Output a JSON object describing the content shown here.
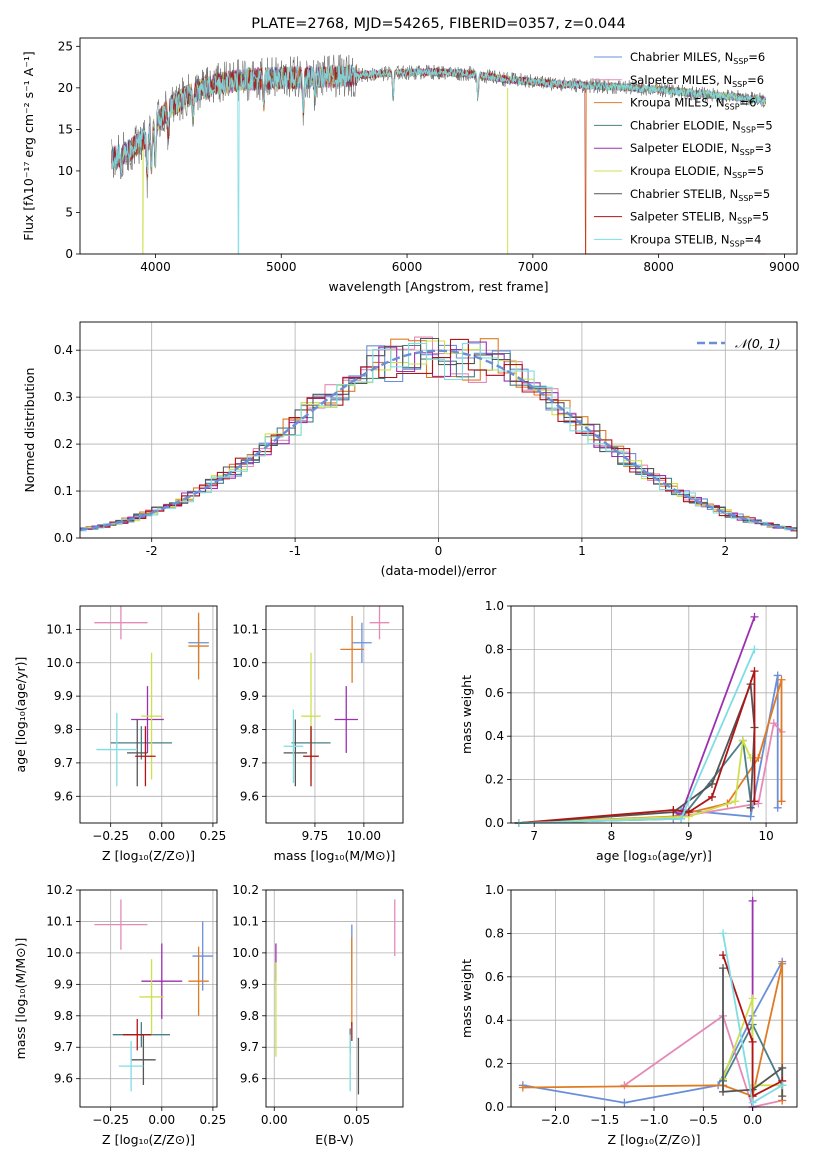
{
  "figure_title": "PLATE=2768, MJD=54265, FIBERID=0357, z=0.044",
  "colors": {
    "grid": "#b0b0b0",
    "chabrier_miles": "#6a8fd9",
    "salpeter_miles": "#e58ab8",
    "kroupa_miles": "#e07b25",
    "chabrier_elodie": "#4a7f8a",
    "salpeter_elodie": "#9b30b0",
    "kroupa_elodie": "#cfe04e",
    "chabrier_stelib": "#555555",
    "salpeter_stelib": "#b01515",
    "kroupa_stelib": "#7fdde3",
    "normal_curve": "#6a8fd9"
  },
  "chart_data": [
    {
      "id": "spectrum",
      "type": "line",
      "title": "PLATE=2768, MJD=54265, FIBERID=0357, z=0.044",
      "xlabel": "wavelength [Angstrom, rest frame]",
      "ylabel": "Flux [fλ10⁻¹⁷ erg cm⁻² s⁻¹ A⁻¹]",
      "xlim": [
        3400,
        9100
      ],
      "ylim": [
        0,
        26
      ],
      "xticks": [
        4000,
        5000,
        6000,
        7000,
        8000,
        9000
      ],
      "yticks": [
        0,
        5,
        10,
        15,
        20,
        25
      ],
      "legend_position": "top-right",
      "grid": false,
      "continuum": {
        "x": [
          3650,
          3800,
          3950,
          4100,
          4300,
          4500,
          4700,
          5000,
          5300,
          5600,
          5900,
          6200,
          6500,
          6800,
          7100,
          7400,
          7700,
          8000,
          8300,
          8600,
          8850
        ],
        "y": [
          11.5,
          12.5,
          14.5,
          17.5,
          19.5,
          20.5,
          21.0,
          21.2,
          21.3,
          21.5,
          21.8,
          21.9,
          21.7,
          21.0,
          20.6,
          20.3,
          20.1,
          19.8,
          19.3,
          18.9,
          18.5
        ]
      },
      "series": [
        {
          "name": "Chabrier MILES, N_SSP=6",
          "legend_base": "Chabrier MILES, N",
          "legend_sub": "SSP",
          "legend_tail": "=6",
          "color_key": "chabrier_miles",
          "lw": 0.7
        },
        {
          "name": "Salpeter MILES, N_SSP=6",
          "legend_base": "Salpeter MILES, N",
          "legend_sub": "SSP",
          "legend_tail": "=6",
          "color_key": "salpeter_miles",
          "lw": 0.7
        },
        {
          "name": "Kroupa MILES, N_SSP=6",
          "legend_base": "Kroupa MILES, N",
          "legend_sub": "SSP",
          "legend_tail": "=6",
          "color_key": "kroupa_miles",
          "lw": 0.7,
          "drop_at": 7420
        },
        {
          "name": "Chabrier ELODIE, N_SSP=5",
          "legend_base": "Chabrier ELODIE, N",
          "legend_sub": "SSP",
          "legend_tail": "=5",
          "color_key": "chabrier_elodie",
          "lw": 0.7
        },
        {
          "name": "Salpeter ELODIE, N_SSP=3",
          "legend_base": "Salpeter ELODIE, N",
          "legend_sub": "SSP",
          "legend_tail": "=3",
          "color_key": "salpeter_elodie",
          "lw": 0.7
        },
        {
          "name": "Kroupa ELODIE, N_SSP=5",
          "legend_base": "Kroupa ELODIE, N",
          "legend_sub": "SSP",
          "legend_tail": "=5",
          "color_key": "kroupa_elodie",
          "lw": 0.7,
          "drop_at": 3900
        },
        {
          "name": "Chabrier STELIB, N_SSP=5",
          "legend_base": "Chabrier STELIB, N",
          "legend_sub": "SSP",
          "legend_tail": "=5",
          "color_key": "chabrier_stelib",
          "lw": 0.5
        },
        {
          "name": "Salpeter STELIB, N_SSP=5",
          "legend_base": "Salpeter STELIB, N",
          "legend_sub": "SSP",
          "legend_tail": "=5",
          "color_key": "salpeter_stelib",
          "lw": 0.7,
          "drop_at": 7420
        },
        {
          "name": "Kroupa STELIB, N_SSP=4",
          "legend_base": "Kroupa STELIB, N",
          "legend_sub": "SSP",
          "legend_tail": "=4",
          "color_key": "kroupa_stelib",
          "lw": 0.9,
          "drop_at": 4660
        }
      ],
      "data_dropout": {
        "x": 6800,
        "y_from": 20,
        "y_to": 0
      }
    },
    {
      "id": "residuals",
      "type": "histogram",
      "xlabel": "(data-model)/error",
      "ylabel": "Normed distribution",
      "xlim": [
        -2.5,
        2.5
      ],
      "ylim": [
        0,
        0.46
      ],
      "xticks": [
        -2,
        -1,
        0,
        1,
        2
      ],
      "yticks": [
        0.0,
        0.1,
        0.2,
        0.3,
        0.4
      ],
      "grid": true,
      "legend": [
        {
          "label": "𝒩(0, 1)",
          "style": "dashed",
          "color_key": "normal_curve"
        }
      ],
      "normal_curve": {
        "mu": 0,
        "sigma": 1
      },
      "bin_width": 0.125,
      "bins_x_range": [
        -2.5,
        2.5
      ],
      "series_keys": [
        "chabrier_miles",
        "salpeter_miles",
        "kroupa_miles",
        "chabrier_elodie",
        "salpeter_elodie",
        "kroupa_elodie",
        "chabrier_stelib",
        "salpeter_stelib",
        "kroupa_stelib"
      ]
    },
    {
      "id": "age-vs-Z",
      "type": "scatter",
      "xlabel": "Z [log₁₀(Z/Z⊙)]",
      "ylabel": "age  [log₁₀(age/yr)]",
      "xlim": [
        -0.4,
        0.27
      ],
      "ylim": [
        9.52,
        10.17
      ],
      "xticks": [
        -0.25,
        0.0,
        0.25
      ],
      "xtick_labels": [
        "−0.25",
        "0.00",
        "0.25"
      ],
      "yticks": [
        9.6,
        9.7,
        9.8,
        9.9,
        10.0,
        10.1
      ],
      "grid": true,
      "points": [
        {
          "color_key": "salpeter_miles",
          "x": -0.2,
          "xerr": 0.13,
          "y": 10.12,
          "yerr": 0.05
        },
        {
          "color_key": "chabrier_miles",
          "x": 0.18,
          "xerr": 0.05,
          "y": 10.06,
          "yerr": 0.06
        },
        {
          "color_key": "kroupa_miles",
          "x": 0.18,
          "xerr": 0.05,
          "y": 10.05,
          "yerr": 0.1
        },
        {
          "color_key": "chabrier_elodie",
          "x": -0.1,
          "xerr": 0.15,
          "y": 9.76,
          "yerr": 0.05
        },
        {
          "color_key": "salpeter_elodie",
          "x": -0.07,
          "xerr": 0.08,
          "y": 9.83,
          "yerr": 0.1
        },
        {
          "color_key": "kroupa_elodie",
          "x": -0.05,
          "xerr": 0.05,
          "y": 9.84,
          "yerr": 0.19
        },
        {
          "color_key": "chabrier_stelib",
          "x": -0.12,
          "xerr": 0.05,
          "y": 9.73,
          "yerr": 0.1
        },
        {
          "color_key": "salpeter_stelib",
          "x": -0.08,
          "xerr": 0.05,
          "y": 9.72,
          "yerr": 0.09
        },
        {
          "color_key": "kroupa_stelib",
          "x": -0.22,
          "xerr": 0.1,
          "y": 9.74,
          "yerr": 0.11
        }
      ]
    },
    {
      "id": "age-vs-mass",
      "type": "scatter",
      "xlabel": "mass [log₁₀(M/M⊙)]",
      "ylabel": "",
      "xlim": [
        9.5,
        10.2
      ],
      "ylim": [
        9.52,
        10.17
      ],
      "xticks": [
        9.75,
        10.0
      ],
      "xtick_labels": [
        "9.75",
        "10.00"
      ],
      "yticks": [
        9.6,
        9.7,
        9.8,
        9.9,
        10.0,
        10.1
      ],
      "grid": true,
      "points": [
        {
          "color_key": "salpeter_miles",
          "x": 10.08,
          "xerr": 0.05,
          "y": 10.12,
          "yerr": 0.05
        },
        {
          "color_key": "chabrier_miles",
          "x": 9.99,
          "xerr": 0.05,
          "y": 10.06,
          "yerr": 0.06
        },
        {
          "color_key": "kroupa_miles",
          "x": 9.94,
          "xerr": 0.06,
          "y": 10.04,
          "yerr": 0.1
        },
        {
          "color_key": "chabrier_elodie",
          "x": 9.73,
          "xerr": 0.1,
          "y": 9.76,
          "yerr": 0.05
        },
        {
          "color_key": "salpeter_elodie",
          "x": 9.91,
          "xerr": 0.06,
          "y": 9.83,
          "yerr": 0.1
        },
        {
          "color_key": "kroupa_elodie",
          "x": 9.73,
          "xerr": 0.05,
          "y": 9.84,
          "yerr": 0.19
        },
        {
          "color_key": "chabrier_stelib",
          "x": 9.65,
          "xerr": 0.06,
          "y": 9.73,
          "yerr": 0.1
        },
        {
          "color_key": "salpeter_stelib",
          "x": 9.73,
          "xerr": 0.04,
          "y": 9.72,
          "yerr": 0.09
        },
        {
          "color_key": "kroupa_stelib",
          "x": 9.64,
          "xerr": 0.05,
          "y": 9.75,
          "yerr": 0.11
        }
      ]
    },
    {
      "id": "mass-weight-vs-age",
      "type": "line",
      "xlabel": "age  [log₁₀(age/yr)]",
      "ylabel": "mass weight",
      "xlim": [
        6.7,
        10.4
      ],
      "ylim": [
        0,
        1.0
      ],
      "xticks": [
        7,
        8,
        9,
        10
      ],
      "yticks": [
        0.0,
        0.2,
        0.4,
        0.6,
        0.8,
        1.0
      ],
      "grid": true,
      "series": [
        {
          "color_key": "chabrier_miles",
          "x": [
            6.8,
            8.8,
            8.9,
            9.8,
            10.15,
            10.15
          ],
          "y": [
            0.0,
            0.02,
            0.06,
            0.03,
            0.68,
            0.07
          ]
        },
        {
          "color_key": "salpeter_miles",
          "x": [
            6.8,
            8.9,
            9.9,
            10.1,
            10.2
          ],
          "y": [
            0.0,
            0.03,
            0.09,
            0.46,
            0.42
          ]
        },
        {
          "color_key": "kroupa_miles",
          "x": [
            6.8,
            8.8,
            9.5,
            9.9,
            10.2,
            10.2
          ],
          "y": [
            0.0,
            0.03,
            0.09,
            0.3,
            0.66,
            0.1
          ]
        },
        {
          "color_key": "chabrier_elodie",
          "x": [
            6.8,
            8.9,
            9.7,
            9.8
          ],
          "y": [
            0.0,
            0.02,
            0.38,
            0.1
          ]
        },
        {
          "color_key": "salpeter_elodie",
          "x": [
            8.8,
            8.9,
            9.85
          ],
          "y": [
            0.05,
            0.04,
            0.95
          ]
        },
        {
          "color_key": "kroupa_elodie",
          "x": [
            6.8,
            9.0,
            9.6,
            9.7,
            9.8
          ],
          "y": [
            0.0,
            0.03,
            0.1,
            0.38,
            0.3
          ]
        },
        {
          "color_key": "chabrier_stelib",
          "x": [
            6.8,
            8.8,
            9.3,
            9.8,
            9.85,
            9.8
          ],
          "y": [
            0.0,
            0.05,
            0.18,
            0.64,
            0.44,
            0.07
          ]
        },
        {
          "color_key": "salpeter_stelib",
          "x": [
            6.8,
            8.8,
            9.0,
            9.3,
            9.85,
            9.85
          ],
          "y": [
            0.0,
            0.06,
            0.05,
            0.12,
            0.7,
            0.1
          ]
        },
        {
          "color_key": "kroupa_stelib",
          "x": [
            6.8,
            8.9,
            9.85
          ],
          "y": [
            0.0,
            0.02,
            0.8
          ]
        }
      ]
    },
    {
      "id": "mass-vs-Z",
      "type": "scatter",
      "xlabel": "Z [log₁₀(Z/Z⊙)]",
      "ylabel": "mass [log₁₀(M/M⊙)]",
      "xlim": [
        -0.4,
        0.27
      ],
      "ylim": [
        9.51,
        10.2
      ],
      "xticks": [
        -0.25,
        0.0,
        0.25
      ],
      "xtick_labels": [
        "−0.25",
        "0.00",
        "0.25"
      ],
      "yticks": [
        9.6,
        9.7,
        9.8,
        9.9,
        10.0,
        10.1,
        10.2
      ],
      "grid": true,
      "points": [
        {
          "color_key": "salpeter_miles",
          "x": -0.2,
          "xerr": 0.13,
          "y": 10.09,
          "yerr": 0.08
        },
        {
          "color_key": "chabrier_miles",
          "x": 0.2,
          "xerr": 0.05,
          "y": 9.99,
          "yerr": 0.11
        },
        {
          "color_key": "kroupa_miles",
          "x": 0.18,
          "xerr": 0.05,
          "y": 9.91,
          "yerr": 0.11
        },
        {
          "color_key": "chabrier_elodie",
          "x": -0.1,
          "xerr": 0.14,
          "y": 9.74,
          "yerr": 0.04
        },
        {
          "color_key": "salpeter_elodie",
          "x": 0.0,
          "xerr": 0.1,
          "y": 9.91,
          "yerr": 0.12
        },
        {
          "color_key": "kroupa_elodie",
          "x": -0.05,
          "xerr": 0.06,
          "y": 9.86,
          "yerr": 0.12
        },
        {
          "color_key": "chabrier_stelib",
          "x": -0.09,
          "xerr": 0.06,
          "y": 9.66,
          "yerr": 0.08
        },
        {
          "color_key": "salpeter_stelib",
          "x": -0.12,
          "xerr": 0.07,
          "y": 9.74,
          "yerr": 0.05
        },
        {
          "color_key": "kroupa_stelib",
          "x": -0.15,
          "xerr": 0.06,
          "y": 9.64,
          "yerr": 0.08
        }
      ]
    },
    {
      "id": "mass-vs-ebv",
      "type": "scatter",
      "xlabel": "E(B-V)",
      "ylabel": "",
      "xlim": [
        -0.005,
        0.078
      ],
      "ylim": [
        9.51,
        10.2
      ],
      "xticks": [
        0.0,
        0.05
      ],
      "xtick_labels": [
        "0.00",
        "0.05"
      ],
      "yticks": [
        9.6,
        9.7,
        9.8,
        9.9,
        10.0,
        10.1,
        10.2
      ],
      "grid": true,
      "points": [
        {
          "color_key": "salpeter_miles",
          "x": 0.073,
          "xerr": 0,
          "y": 10.08,
          "yerr": 0.09
        },
        {
          "color_key": "chabrier_miles",
          "x": 0.047,
          "xerr": 0,
          "y": 10.0,
          "yerr": 0.09
        },
        {
          "color_key": "kroupa_miles",
          "x": 0.047,
          "xerr": 0,
          "y": 9.91,
          "yerr": 0.14
        },
        {
          "color_key": "chabrier_elodie",
          "x": 0.046,
          "xerr": 0,
          "y": 9.72,
          "yerr": 0.04
        },
        {
          "color_key": "salpeter_elodie",
          "x": 0.001,
          "xerr": 0,
          "y": 9.97,
          "yerr": 0.06
        },
        {
          "color_key": "kroupa_elodie",
          "x": 0.001,
          "xerr": 0,
          "y": 9.82,
          "yerr": 0.15
        },
        {
          "color_key": "chabrier_stelib",
          "x": 0.051,
          "xerr": 0,
          "y": 9.64,
          "yerr": 0.09
        },
        {
          "color_key": "salpeter_stelib",
          "x": 0.047,
          "xerr": 0,
          "y": 9.75,
          "yerr": 0.03
        },
        {
          "color_key": "kroupa_stelib",
          "x": 0.046,
          "xerr": 0,
          "y": 9.65,
          "yerr": 0.09
        }
      ]
    },
    {
      "id": "mass-weight-vs-Z",
      "type": "line",
      "xlabel": "Z [log₁₀(Z/Z⊙)]",
      "ylabel": "mass weight",
      "xlim": [
        -2.45,
        0.45
      ],
      "ylim": [
        0,
        1.0
      ],
      "xticks": [
        -2.0,
        -1.5,
        -1.0,
        -0.5,
        0.0
      ],
      "xtick_labels": [
        "−2.0",
        "−1.5",
        "−1.0",
        "−0.5",
        "0.0"
      ],
      "yticks": [
        0.0,
        0.2,
        0.4,
        0.6,
        0.8,
        1.0
      ],
      "grid": true,
      "series": [
        {
          "color_key": "chabrier_miles",
          "x": [
            -2.33,
            -1.3,
            -0.35,
            0.0,
            0.3
          ],
          "y": [
            0.1,
            0.02,
            0.1,
            0.42,
            0.67
          ]
        },
        {
          "color_key": "salpeter_miles",
          "x": [
            -1.3,
            -0.3,
            0.0,
            0.3
          ],
          "y": [
            0.1,
            0.42,
            0.0,
            0.03
          ]
        },
        {
          "color_key": "kroupa_miles",
          "x": [
            -2.33,
            -0.3,
            0.0,
            0.3,
            0.3
          ],
          "y": [
            0.09,
            0.1,
            0.05,
            0.66,
            0.03
          ]
        },
        {
          "color_key": "chabrier_elodie",
          "x": [
            -0.3,
            0.0,
            0.3
          ],
          "y": [
            0.12,
            0.38,
            0.1
          ]
        },
        {
          "color_key": "salpeter_elodie",
          "x": [
            0.0,
            0.0
          ],
          "y": [
            0.95,
            0.0
          ]
        },
        {
          "color_key": "kroupa_elodie",
          "x": [
            -0.3,
            0.0,
            0.0,
            0.3
          ],
          "y": [
            0.13,
            0.5,
            0.1,
            0.1
          ]
        },
        {
          "color_key": "chabrier_stelib",
          "x": [
            -0.3,
            -0.3,
            0.0,
            0.3,
            0.3
          ],
          "y": [
            0.64,
            0.07,
            0.08,
            0.18,
            0.05
          ]
        },
        {
          "color_key": "salpeter_stelib",
          "x": [
            -0.3,
            0.0,
            0.0,
            0.3
          ],
          "y": [
            0.7,
            0.3,
            0.05,
            0.12
          ]
        },
        {
          "color_key": "kroupa_stelib",
          "x": [
            -0.3,
            0.0,
            0.3
          ],
          "y": [
            0.8,
            0.02,
            0.1
          ]
        }
      ]
    }
  ]
}
